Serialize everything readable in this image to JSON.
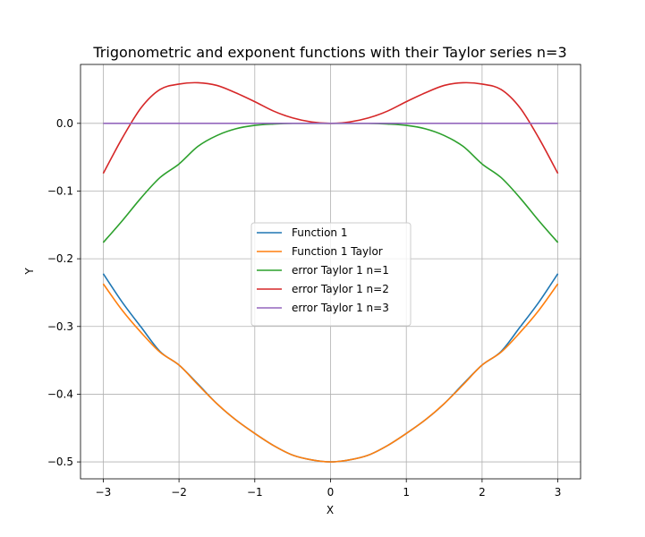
{
  "chart_data": {
    "type": "line",
    "title": "Trigonometric and exponent functions with their Taylor series n=3",
    "xlabel": "X",
    "ylabel": "Y",
    "xlim": [
      -3.3,
      3.3
    ],
    "ylim": [
      -0.525,
      0.087
    ],
    "grid": true,
    "legend_position": "center",
    "xticks": [
      -3,
      -2,
      -1,
      0,
      1,
      2,
      3
    ],
    "xtick_labels": [
      "−3",
      "−2",
      "−1",
      "0",
      "1",
      "2",
      "3"
    ],
    "yticks": [
      0.0,
      -0.1,
      -0.2,
      -0.3,
      -0.4,
      -0.5
    ],
    "ytick_labels": [
      "0.0",
      "−0.1",
      "−0.2",
      "−0.3",
      "−0.4",
      "−0.5"
    ],
    "x": [
      -3.0,
      -2.75,
      -2.5,
      -2.25,
      -2.0,
      -1.75,
      -1.5,
      -1.25,
      -1.0,
      -0.75,
      -0.5,
      -0.25,
      0.0,
      0.25,
      0.5,
      0.75,
      1.0,
      1.25,
      1.5,
      1.75,
      2.0,
      2.25,
      2.5,
      2.75,
      3.0
    ],
    "series": [
      {
        "name": "Function 1",
        "color": "#1f77b4",
        "values": [
          -0.222,
          -0.264,
          -0.301,
          -0.337,
          -0.357,
          -0.385,
          -0.414,
          -0.438,
          -0.458,
          -0.476,
          -0.49,
          -0.497,
          -0.5,
          -0.497,
          -0.49,
          -0.476,
          -0.458,
          -0.438,
          -0.414,
          -0.385,
          -0.357,
          -0.337,
          -0.301,
          -0.264,
          -0.222
        ]
      },
      {
        "name": "Function 1 Taylor",
        "color": "#ff7f0e",
        "values": [
          -0.237,
          -0.276,
          -0.309,
          -0.338,
          -0.357,
          -0.386,
          -0.414,
          -0.438,
          -0.458,
          -0.476,
          -0.49,
          -0.497,
          -0.5,
          -0.497,
          -0.49,
          -0.476,
          -0.458,
          -0.438,
          -0.414,
          -0.386,
          -0.357,
          -0.338,
          -0.309,
          -0.276,
          -0.237
        ]
      },
      {
        "name": "error Taylor 1 n=1",
        "color": "#2ca02c",
        "values": [
          -0.176,
          -0.144,
          -0.11,
          -0.08,
          -0.06,
          -0.034,
          -0.018,
          -0.008,
          -0.003,
          -0.001,
          0.0,
          0.0,
          0.0,
          0.0,
          0.0,
          -0.001,
          -0.003,
          -0.008,
          -0.018,
          -0.034,
          -0.06,
          -0.08,
          -0.11,
          -0.144,
          -0.176
        ]
      },
      {
        "name": "error Taylor 1 n=2",
        "color": "#d62728",
        "values": [
          -0.074,
          -0.022,
          0.023,
          0.05,
          0.058,
          0.06,
          0.056,
          0.045,
          0.032,
          0.018,
          0.008,
          0.002,
          0.0,
          0.002,
          0.008,
          0.018,
          0.032,
          0.045,
          0.056,
          0.06,
          0.058,
          0.05,
          0.023,
          -0.022,
          -0.074
        ]
      },
      {
        "name": "error Taylor 1 n=3",
        "color": "#9467bd",
        "values": [
          0.0,
          0.0,
          0.0,
          0.0,
          0.0,
          0.0,
          0.0,
          0.0,
          0.0,
          0.0,
          0.0,
          0.0,
          0.0,
          0.0,
          0.0,
          0.0,
          0.0,
          0.0,
          0.0,
          0.0,
          0.0,
          0.0,
          0.0,
          0.0,
          0.0
        ]
      }
    ]
  }
}
